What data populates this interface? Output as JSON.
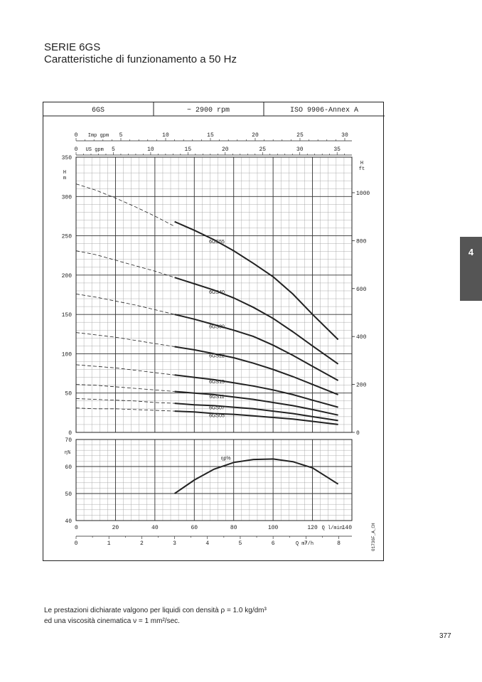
{
  "page": {
    "title_line1": "SERIE 6GS",
    "title_line2": "Caratteristiche di funzionamento a 50 Hz",
    "tab_number": "4",
    "footnote_line1": "Le prestazioni dichiarate valgono per liquidi con densità ρ = 1.0 kg/dm³",
    "footnote_line2": "ed una viscosità cinematica ν = 1 mm²/sec.",
    "page_number": "377",
    "chart_ref": "01736F_A_CH"
  },
  "header": {
    "model": "6GS",
    "speed": "~ 2900 rpm",
    "standard": "ISO 9906-Annex A"
  },
  "chart_data": [
    {
      "type": "line",
      "panel": "head",
      "ylabel_left": "H\nm",
      "ylabel_right": "H\nft",
      "xlim": [
        0,
        140
      ],
      "ylim": [
        0,
        350
      ],
      "y_ticks_left": [
        0,
        50,
        100,
        150,
        200,
        250,
        300,
        350
      ],
      "y_ticks_right_ft": [
        0,
        200,
        400,
        600,
        800,
        1000
      ],
      "x_top_axes": [
        {
          "label": "Imp gpm",
          "ticks": [
            0,
            5,
            10,
            15,
            20,
            25,
            30
          ]
        },
        {
          "label": "US gpm",
          "ticks": [
            0,
            5,
            10,
            15,
            20,
            25,
            30,
            35
          ]
        }
      ],
      "series": [
        {
          "name": "6GS55",
          "dashed_x": [
            0,
            10,
            20,
            30,
            40,
            50
          ],
          "dashed_y": [
            316,
            308,
            298,
            287,
            275,
            262
          ],
          "x": [
            50,
            60,
            70,
            80,
            90,
            100,
            110,
            120,
            133
          ],
          "y": [
            268,
            257,
            245,
            231,
            215,
            198,
            176,
            150,
            118
          ]
        },
        {
          "name": "6GS40",
          "dashed_x": [
            0,
            10,
            20,
            30,
            40,
            50
          ],
          "dashed_y": [
            231,
            226,
            219,
            212,
            205,
            197
          ],
          "x": [
            50,
            60,
            70,
            80,
            90,
            100,
            110,
            120,
            133
          ],
          "y": [
            197,
            189,
            181,
            171,
            159,
            145,
            128,
            110,
            87
          ]
        },
        {
          "name": "6GS30",
          "dashed_x": [
            0,
            10,
            20,
            30,
            40,
            50
          ],
          "dashed_y": [
            176,
            172,
            167,
            162,
            156,
            150
          ],
          "x": [
            50,
            60,
            70,
            80,
            90,
            100,
            110,
            120,
            133
          ],
          "y": [
            150,
            144,
            137,
            130,
            122,
            111,
            98,
            84,
            66
          ]
        },
        {
          "name": "6GS22",
          "dashed_x": [
            0,
            10,
            20,
            30,
            40,
            50
          ],
          "dashed_y": [
            127,
            124,
            121,
            117,
            113,
            109
          ],
          "x": [
            50,
            60,
            70,
            80,
            90,
            100,
            110,
            120,
            133
          ],
          "y": [
            109,
            105,
            100,
            95,
            88,
            80,
            71,
            61,
            48
          ]
        },
        {
          "name": "6GS15",
          "dashed_x": [
            0,
            10,
            20,
            30,
            40,
            50
          ],
          "dashed_y": [
            86,
            84,
            82,
            79,
            76,
            73
          ],
          "x": [
            50,
            60,
            70,
            80,
            90,
            100,
            110,
            120,
            133
          ],
          "y": [
            73,
            70,
            67,
            63,
            59,
            54,
            48,
            41,
            32
          ]
        },
        {
          "name": "6GS11",
          "dashed_x": [
            0,
            10,
            20,
            30,
            40,
            50
          ],
          "dashed_y": [
            61,
            60,
            58,
            56,
            54,
            52
          ],
          "x": [
            50,
            60,
            70,
            80,
            90,
            100,
            110,
            120,
            133
          ],
          "y": [
            52,
            50,
            48,
            45,
            42,
            38,
            34,
            29,
            22
          ]
        },
        {
          "name": "6GS07",
          "dashed_x": [
            0,
            10,
            20,
            30,
            40,
            50
          ],
          "dashed_y": [
            43,
            42,
            41,
            40,
            38,
            37
          ],
          "x": [
            50,
            60,
            70,
            80,
            90,
            100,
            110,
            120,
            133
          ],
          "y": [
            37,
            35,
            34,
            32,
            30,
            27,
            24,
            20,
            15
          ]
        },
        {
          "name": "6GS05",
          "dashed_x": [
            0,
            10,
            20,
            30,
            40,
            50
          ],
          "dashed_y": [
            31,
            30,
            30,
            29,
            28,
            27
          ],
          "x": [
            50,
            60,
            70,
            80,
            90,
            100,
            110,
            120,
            133
          ],
          "y": [
            27,
            26,
            24,
            23,
            21,
            19,
            17,
            14,
            10
          ]
        }
      ]
    },
    {
      "type": "line",
      "panel": "efficiency",
      "ylabel": "η%",
      "ylim": [
        40,
        70
      ],
      "y_ticks": [
        40,
        50,
        60,
        70
      ],
      "xlim": [
        0,
        140
      ],
      "series": [
        {
          "name": "ηp%",
          "x": [
            50,
            60,
            70,
            80,
            90,
            100,
            110,
            120,
            133
          ],
          "y": [
            50,
            55,
            59,
            61.5,
            62.6,
            62.8,
            61.8,
            59.5,
            53.5
          ]
        }
      ],
      "x_bottom_axes": [
        {
          "label": "Q l/min",
          "ticks": [
            0,
            20,
            40,
            60,
            80,
            100,
            120,
            140
          ]
        },
        {
          "label": "Q m³/h",
          "ticks": [
            0,
            1,
            2,
            3,
            4,
            5,
            6,
            7,
            8
          ]
        }
      ]
    }
  ]
}
